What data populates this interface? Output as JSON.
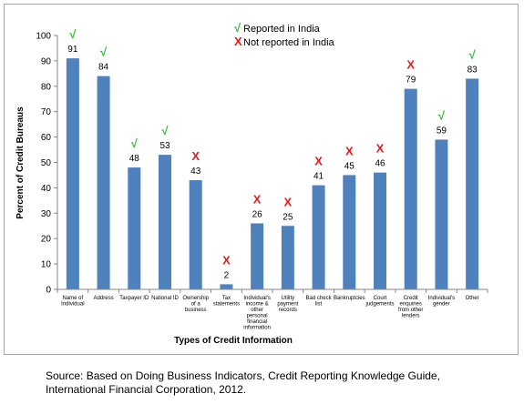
{
  "chart_data": {
    "type": "bar",
    "title": "",
    "xlabel": "Types of Credit Information",
    "ylabel": "Percent of Credit Bureaus",
    "ylim": [
      0,
      100
    ],
    "yticks": [
      0,
      10,
      20,
      30,
      40,
      50,
      60,
      70,
      80,
      90,
      100
    ],
    "grid": false,
    "bar_color": "#4f81bd",
    "categories": [
      [
        "Name of",
        "Individual"
      ],
      [
        "Address"
      ],
      [
        "Taxpayer ID"
      ],
      [
        "National ID"
      ],
      [
        "Ownership",
        "of a",
        "business"
      ],
      [
        "Tax",
        "statements"
      ],
      [
        "Individual's",
        "income &",
        "other",
        "personal",
        "financial",
        "information"
      ],
      [
        "Utility",
        "payment",
        "records"
      ],
      [
        "Bad check",
        "list"
      ],
      [
        "Bankruptcies"
      ],
      [
        "Court",
        "judgements"
      ],
      [
        "Credit",
        "enquiries",
        "from other",
        "lenders"
      ],
      [
        "Individual's",
        "gender"
      ],
      [
        "Other"
      ]
    ],
    "values": [
      91,
      84,
      48,
      53,
      43,
      2,
      26,
      25,
      41,
      45,
      46,
      79,
      59,
      83
    ],
    "reported": [
      true,
      true,
      true,
      true,
      false,
      false,
      false,
      false,
      false,
      false,
      false,
      false,
      true,
      true
    ],
    "legend": {
      "placement": "top-center",
      "reported": {
        "symbol": "√",
        "label": "Reported in India",
        "color": "#2eb82e"
      },
      "not_reported": {
        "symbol": "X",
        "label": "Not reported in India",
        "color": "#e31a1c"
      }
    }
  },
  "source": {
    "line1": "Source: Based on Doing Business Indicators, Credit Reporting Knowledge Guide,",
    "line2": "International Financial Corporation, 2012."
  }
}
